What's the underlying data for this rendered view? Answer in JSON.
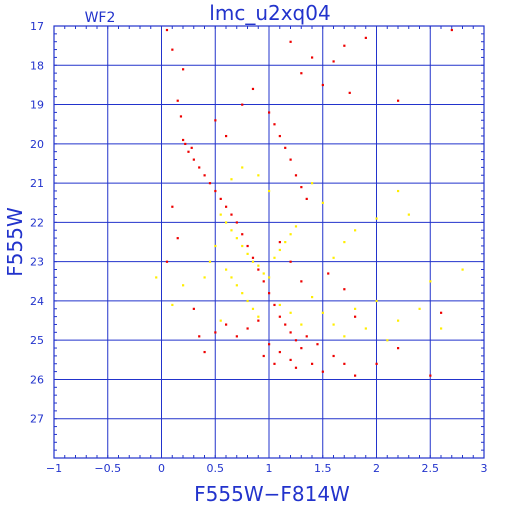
{
  "chart_data": {
    "type": "scatter",
    "title": "lmc_u2xq04",
    "subtitle": "WF2",
    "xlabel": "F555W−F814W",
    "ylabel": "F555W",
    "xlim": [
      -1,
      3
    ],
    "ylim": [
      28,
      17
    ],
    "y_inverted": true,
    "grid": true,
    "x_ticks": [
      -1,
      -0.5,
      0,
      0.5,
      1,
      1.5,
      2,
      2.5,
      3
    ],
    "x_tick_labels": [
      "−1",
      "−0.5",
      "0",
      "0.5",
      "1",
      "1.5",
      "2",
      "2.5",
      "3"
    ],
    "y_ticks": [
      17,
      18,
      19,
      20,
      21,
      22,
      23,
      24,
      25,
      26,
      27
    ],
    "y_tick_labels": [
      "17",
      "18",
      "19",
      "20",
      "21",
      "22",
      "23",
      "24",
      "25",
      "26",
      "27"
    ],
    "series": [
      {
        "color": "#ee0000",
        "points": [
          [
            0.05,
            17.1
          ],
          [
            0.1,
            17.6
          ],
          [
            0.2,
            18.1
          ],
          [
            0.15,
            18.9
          ],
          [
            0.18,
            19.3
          ],
          [
            0.2,
            19.9
          ],
          [
            0.22,
            20.0
          ],
          [
            0.25,
            20.2
          ],
          [
            0.3,
            20.4
          ],
          [
            0.28,
            20.1
          ],
          [
            0.35,
            20.6
          ],
          [
            0.4,
            20.8
          ],
          [
            0.45,
            21.0
          ],
          [
            0.5,
            21.2
          ],
          [
            0.55,
            21.4
          ],
          [
            0.6,
            21.6
          ],
          [
            0.65,
            21.8
          ],
          [
            0.7,
            22.0
          ],
          [
            0.75,
            22.3
          ],
          [
            0.8,
            22.6
          ],
          [
            0.85,
            22.9
          ],
          [
            0.9,
            23.2
          ],
          [
            0.95,
            23.5
          ],
          [
            1.0,
            23.8
          ],
          [
            1.05,
            24.1
          ],
          [
            1.1,
            24.4
          ],
          [
            1.15,
            24.6
          ],
          [
            1.2,
            24.8
          ],
          [
            1.25,
            25.0
          ],
          [
            1.3,
            25.2
          ],
          [
            0.9,
            24.5
          ],
          [
            0.8,
            24.7
          ],
          [
            0.7,
            24.9
          ],
          [
            1.0,
            25.1
          ],
          [
            1.1,
            25.3
          ],
          [
            1.2,
            25.5
          ],
          [
            1.4,
            25.6
          ],
          [
            1.5,
            25.8
          ],
          [
            0.6,
            24.6
          ],
          [
            0.5,
            24.8
          ],
          [
            1.35,
            24.9
          ],
          [
            1.45,
            25.1
          ],
          [
            0.95,
            25.4
          ],
          [
            1.05,
            25.6
          ],
          [
            1.25,
            25.7
          ],
          [
            1.6,
            25.4
          ],
          [
            1.7,
            25.6
          ],
          [
            1.8,
            25.9
          ],
          [
            0.3,
            24.2
          ],
          [
            0.35,
            24.9
          ],
          [
            0.4,
            25.3
          ],
          [
            1.0,
            19.2
          ],
          [
            1.05,
            19.5
          ],
          [
            1.1,
            19.8
          ],
          [
            1.15,
            20.1
          ],
          [
            1.2,
            20.4
          ],
          [
            1.25,
            20.8
          ],
          [
            1.3,
            21.1
          ],
          [
            1.35,
            21.4
          ],
          [
            1.3,
            18.2
          ],
          [
            1.4,
            17.8
          ],
          [
            1.5,
            18.5
          ],
          [
            1.2,
            17.4
          ],
          [
            1.6,
            17.9
          ],
          [
            1.7,
            17.5
          ],
          [
            1.75,
            18.7
          ],
          [
            0.5,
            19.4
          ],
          [
            0.6,
            19.8
          ],
          [
            0.75,
            19.0
          ],
          [
            0.85,
            18.6
          ],
          [
            2.2,
            25.2
          ],
          [
            2.0,
            25.6
          ],
          [
            2.5,
            25.9
          ],
          [
            2.6,
            24.3
          ],
          [
            2.7,
            17.1
          ],
          [
            2.2,
            18.9
          ],
          [
            1.9,
            17.3
          ],
          [
            0.1,
            21.6
          ],
          [
            0.15,
            22.4
          ],
          [
            0.05,
            23.0
          ],
          [
            1.55,
            23.3
          ],
          [
            1.7,
            23.7
          ],
          [
            1.8,
            24.4
          ],
          [
            1.1,
            22.5
          ],
          [
            1.2,
            23.0
          ],
          [
            1.3,
            23.5
          ]
        ]
      },
      {
        "color": "#ffee00",
        "points": [
          [
            0.55,
            21.8
          ],
          [
            0.6,
            22.0
          ],
          [
            0.65,
            22.2
          ],
          [
            0.7,
            22.4
          ],
          [
            0.75,
            22.6
          ],
          [
            0.8,
            22.8
          ],
          [
            0.85,
            23.0
          ],
          [
            0.9,
            23.1
          ],
          [
            0.95,
            23.3
          ],
          [
            1.0,
            23.4
          ],
          [
            0.7,
            23.6
          ],
          [
            0.75,
            23.8
          ],
          [
            0.8,
            24.0
          ],
          [
            0.85,
            24.2
          ],
          [
            0.9,
            24.4
          ],
          [
            0.6,
            23.2
          ],
          [
            0.65,
            23.4
          ],
          [
            1.05,
            22.9
          ],
          [
            1.1,
            22.7
          ],
          [
            1.15,
            22.5
          ],
          [
            1.2,
            22.3
          ],
          [
            1.25,
            22.1
          ],
          [
            0.5,
            22.6
          ],
          [
            0.45,
            23.0
          ],
          [
            0.4,
            23.4
          ],
          [
            1.4,
            23.9
          ],
          [
            1.5,
            24.3
          ],
          [
            1.6,
            24.6
          ],
          [
            1.7,
            24.9
          ],
          [
            1.8,
            24.2
          ],
          [
            1.9,
            24.7
          ],
          [
            2.0,
            24.0
          ],
          [
            2.2,
            24.5
          ],
          [
            2.4,
            24.2
          ],
          [
            2.6,
            24.7
          ],
          [
            1.6,
            22.9
          ],
          [
            1.7,
            22.5
          ],
          [
            1.8,
            22.2
          ],
          [
            2.0,
            21.9
          ],
          [
            2.2,
            21.2
          ],
          [
            2.3,
            21.8
          ],
          [
            0.2,
            23.6
          ],
          [
            0.1,
            24.1
          ],
          [
            -0.05,
            23.4
          ],
          [
            0.9,
            20.8
          ],
          [
            1.0,
            21.2
          ],
          [
            1.4,
            21.0
          ],
          [
            1.5,
            21.5
          ],
          [
            0.75,
            20.6
          ],
          [
            0.65,
            20.9
          ],
          [
            1.1,
            24.1
          ],
          [
            1.2,
            24.3
          ],
          [
            1.3,
            24.6
          ],
          [
            0.55,
            24.5
          ],
          [
            2.8,
            23.2
          ],
          [
            2.5,
            23.5
          ],
          [
            2.1,
            25.0
          ]
        ]
      }
    ]
  }
}
